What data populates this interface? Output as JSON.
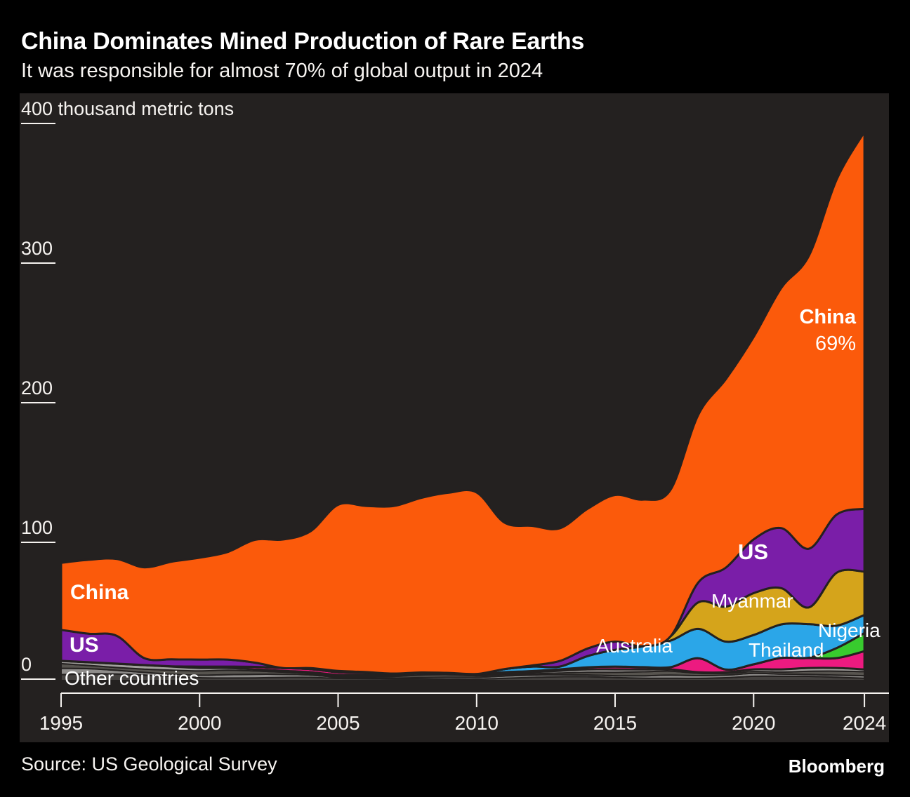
{
  "header": {
    "title": "China Dominates Mined Production of Rare Earths",
    "subtitle": "It was responsible for almost 70% of global output in 2024"
  },
  "footer": {
    "source": "Source: US Geological Survey",
    "brand": "Bloomberg"
  },
  "chart_data": {
    "type": "area",
    "stacked": true,
    "title": "China Dominates Mined Production of Rare Earths",
    "unit_label": "thousand metric tons",
    "ylim": [
      0,
      400
    ],
    "y_ticks": [
      400,
      300,
      200,
      100,
      0
    ],
    "x_ticks": [
      1995,
      2000,
      2005,
      2010,
      2015,
      2020,
      2024
    ],
    "x": [
      1995,
      1996,
      1997,
      1998,
      1999,
      2000,
      2001,
      2002,
      2003,
      2004,
      2005,
      2006,
      2007,
      2008,
      2009,
      2010,
      2011,
      2012,
      2013,
      2014,
      2015,
      2016,
      2017,
      2018,
      2019,
      2020,
      2021,
      2022,
      2023,
      2024
    ],
    "series": [
      {
        "name": "Other countries",
        "color": "#8f8d8b",
        "texture": "multi-gray",
        "values": [
          14,
          13,
          12,
          11,
          10,
          9,
          9,
          8,
          7,
          6,
          4,
          4,
          4,
          5,
          5,
          4,
          5,
          6,
          7,
          8,
          8,
          8,
          8,
          6,
          6,
          8,
          8,
          9,
          9,
          8
        ]
      },
      {
        "name": "Thailand",
        "color": "#ec1a80",
        "values": [
          0.1,
          0.1,
          0.1,
          0.1,
          0.2,
          1,
          1,
          1.8,
          2,
          2.2,
          2,
          1.5,
          1,
          0.8,
          0.5,
          0.7,
          1,
          0.8,
          1,
          1.5,
          2,
          1.6,
          1.6,
          10,
          1.9,
          3.6,
          8.2,
          7.1,
          7.1,
          13
        ]
      },
      {
        "name": "Nigeria",
        "color": "#38cb2e",
        "values": [
          0,
          0,
          0,
          0,
          0,
          0,
          0,
          0,
          0,
          0,
          0,
          0,
          0,
          0,
          0,
          0,
          0,
          0,
          0,
          0,
          0,
          0,
          0,
          0,
          0,
          0,
          0,
          0.3,
          7.2,
          13
        ]
      },
      {
        "name": "Australia",
        "color": "#2ba6e8",
        "values": [
          0,
          0,
          0,
          0,
          0,
          0,
          0,
          0,
          0,
          0.7,
          0.9,
          0.6,
          0,
          0,
          0,
          0,
          2.2,
          3.2,
          2,
          8,
          12,
          15,
          19,
          21,
          20,
          21,
          24,
          24,
          16,
          13
        ]
      },
      {
        "name": "Myanmar",
        "color": "#d5a41b",
        "values": [
          0,
          0,
          0,
          0,
          0,
          0,
          0,
          0,
          0,
          0,
          0,
          0,
          0,
          0,
          0,
          0,
          0,
          0,
          0,
          0,
          0,
          0,
          3,
          19,
          25,
          30,
          26,
          12,
          38,
          31
        ]
      },
      {
        "name": "US",
        "color": "#7a1ea8",
        "values": [
          22.2,
          20.4,
          20,
          5,
          5,
          5,
          5,
          3,
          0,
          0,
          0,
          0,
          0,
          0,
          0,
          0,
          0,
          0.8,
          4,
          5.4,
          5.9,
          0,
          0,
          14.2,
          28,
          38.5,
          43,
          42,
          41.6,
          45
        ]
      },
      {
        "name": "China",
        "color": "#fb5a0b",
        "share_2024": "69%",
        "values": [
          48,
          53,
          55,
          65,
          70,
          73,
          77,
          88,
          92,
          98,
          119,
          119,
          120,
          125,
          129,
          130,
          105,
          100,
          95,
          100,
          105,
          105,
          105,
          120,
          135,
          145,
          172,
          210,
          240,
          270
        ]
      }
    ],
    "labels": {
      "china_left": "China",
      "us_left": "US",
      "other_countries": "Other countries",
      "australia": "Australia",
      "myanmar": "Myanmar",
      "us_right": "US",
      "thailand": "Thailand",
      "nigeria": "Nigeria",
      "china_right": "China",
      "china_share": "69%"
    }
  }
}
